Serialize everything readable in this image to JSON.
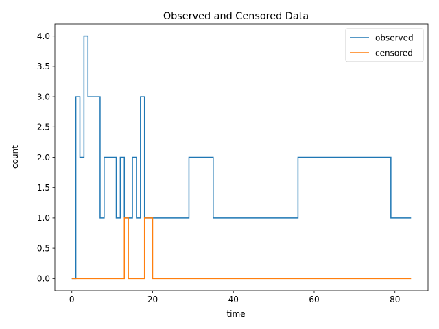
{
  "chart_data": {
    "type": "line",
    "title": "Observed and Censored Data",
    "xlabel": "time",
    "ylabel": "count",
    "xlim": [
      -4.2,
      88.2
    ],
    "ylim": [
      -0.2,
      4.2
    ],
    "xticks": [
      0,
      20,
      40,
      60,
      80
    ],
    "xtick_labels": [
      "0",
      "20",
      "40",
      "60",
      "80"
    ],
    "yticks": [
      0.0,
      0.5,
      1.0,
      1.5,
      2.0,
      2.5,
      3.0,
      3.5,
      4.0
    ],
    "ytick_labels": [
      "0.0",
      "0.5",
      "1.0",
      "1.5",
      "2.0",
      "2.5",
      "3.0",
      "3.5",
      "4.0"
    ],
    "grid": false,
    "legend_position": "top-right",
    "step": "post",
    "series": [
      {
        "name": "observed",
        "color": "#1f77b4",
        "x": [
          0,
          1,
          2,
          3,
          4,
          7,
          8,
          11,
          12,
          13,
          15,
          16,
          17,
          18,
          29,
          35,
          56,
          79,
          84
        ],
        "y": [
          0,
          3,
          2,
          4,
          3,
          1,
          2,
          1,
          2,
          1,
          2,
          1,
          3,
          1,
          2,
          1,
          2,
          1,
          1
        ]
      },
      {
        "name": "censored",
        "color": "#ff7f0e",
        "x": [
          0,
          13,
          14,
          18,
          20,
          84
        ],
        "y": [
          0,
          1,
          0,
          1,
          0,
          0
        ]
      }
    ]
  }
}
